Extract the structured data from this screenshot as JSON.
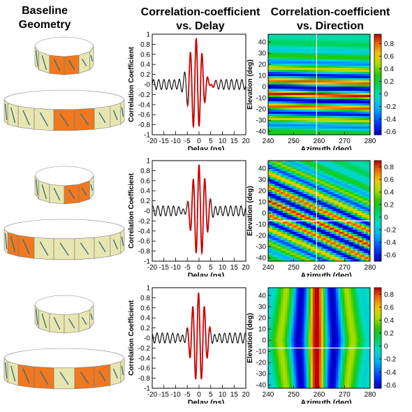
{
  "headers": {
    "baseline_line1": "Baseline",
    "baseline_line2": "Geometry",
    "delay_line1": "Correlation-coefficient",
    "delay_line2": "vs. Delay",
    "direction_line1": "Correlation-coefficient",
    "direction_line2": "vs. Direction"
  },
  "chart_data": [
    {
      "type": "line",
      "row": 1,
      "xlabel": "Delay (ns)",
      "ylabel": "Correlation Coefficient",
      "xlim": [
        -20,
        20
      ],
      "ylim": [
        -1,
        1
      ],
      "xticks": [
        "-20",
        "-15",
        "-10",
        "-5",
        "0",
        "5",
        "10",
        "15",
        "20"
      ],
      "yticks": [
        "-1",
        "-0.8",
        "-0.6",
        "-0.4",
        "-0.2",
        "-0",
        "0.2",
        "0.4",
        "0.6",
        "0.8",
        "1"
      ],
      "series": [
        {
          "color": "#000000",
          "peak_x": -1.2,
          "peak_y": 0.92,
          "min_y": -0.62,
          "period_ns": 2.5
        },
        {
          "color": "#cc0000",
          "fit_range": [
            -5,
            7
          ]
        }
      ]
    },
    {
      "type": "heatmap",
      "row": 1,
      "xlabel": "Azimuth (deg)",
      "ylabel": "Elevation (deg)",
      "xlim": [
        240,
        280
      ],
      "ylim": [
        -43,
        47
      ],
      "xticks": [
        "240",
        "250",
        "260",
        "270",
        "280"
      ],
      "yticks": [
        "-40",
        "-30",
        "-20",
        "-10",
        "0",
        "10",
        "20",
        "30",
        "40"
      ],
      "zlim": [
        -0.65,
        0.95
      ],
      "colorbar_ticks": [
        "-0.6",
        "-0.4",
        "-0.2",
        "0",
        "0.2",
        "0.4",
        "0.6",
        "0.8"
      ],
      "pattern": "horizontal fringes, peak band near elevation -7 deg",
      "crosshair": {
        "azimuth": 259
      }
    },
    {
      "type": "line",
      "row": 2,
      "xlabel": "Delay (ns)",
      "ylabel": "Correlation Coefficient",
      "xlim": [
        -20,
        20
      ],
      "ylim": [
        -1,
        1
      ],
      "xticks": [
        "-20",
        "-15",
        "-10",
        "-5",
        "0",
        "5",
        "10",
        "15",
        "20"
      ],
      "yticks": [
        "-1",
        "-0.8",
        "-0.6",
        "-0.4",
        "-0.2",
        "-0",
        "0.2",
        "0.4",
        "0.6",
        "0.8",
        "1"
      ],
      "series": [
        {
          "color": "#000000",
          "peak_x": 0,
          "peak_y": 0.92,
          "min_y": -0.75,
          "period_ns": 2.5
        },
        {
          "color": "#cc0000",
          "fit_range": [
            -5,
            5
          ]
        }
      ]
    },
    {
      "type": "heatmap",
      "row": 2,
      "xlabel": "Azimuth (deg)",
      "ylabel": "Elevation (deg)",
      "xlim": [
        240,
        280
      ],
      "ylim": [
        -43,
        47
      ],
      "xticks": [
        "240",
        "250",
        "260",
        "270",
        "280"
      ],
      "yticks": [
        "-40",
        "-30",
        "-20",
        "-10",
        "0",
        "10",
        "20",
        "30",
        "40"
      ],
      "zlim": [
        -0.7,
        0.9
      ],
      "colorbar_ticks": [
        "-0.6",
        "-0.4",
        "-0.2",
        "0",
        "0.2",
        "0.4",
        "0.6",
        "0.8"
      ],
      "pattern": "diagonal fringes descending with azimuth",
      "crosshair": {
        "azimuth": 259,
        "elevation": -7
      }
    },
    {
      "type": "line",
      "row": 3,
      "xlabel": "Delay (ns)",
      "ylabel": "Correlation Coefficient",
      "xlim": [
        -20,
        20
      ],
      "ylim": [
        -1,
        1
      ],
      "xticks": [
        "-20",
        "-15",
        "-10",
        "-5",
        "0",
        "5",
        "10",
        "15",
        "20"
      ],
      "yticks": [
        "-1",
        "-0.8",
        "-0.6",
        "-0.4",
        "-0.2",
        "-0",
        "0.2",
        "0.4",
        "0.6",
        "0.8",
        "1"
      ],
      "series": [
        {
          "color": "#000000",
          "peak_x": -0.2,
          "peak_y": 0.9,
          "min_y": -0.72,
          "period_ns": 2.5
        },
        {
          "color": "#cc0000",
          "fit_range": [
            -5,
            5
          ]
        }
      ]
    },
    {
      "type": "heatmap",
      "row": 3,
      "xlabel": "Azimuth (deg)",
      "ylabel": "Elevation (deg)",
      "xlim": [
        240,
        280
      ],
      "ylim": [
        -43,
        47
      ],
      "xticks": [
        "240",
        "250",
        "260",
        "270",
        "280"
      ],
      "yticks": [
        "-40",
        "-30",
        "-20",
        "-10",
        "0",
        "10",
        "20",
        "30",
        "40"
      ],
      "zlim": [
        -0.65,
        0.9
      ],
      "colorbar_ticks": [
        "-0.6",
        "-0.4",
        "-0.2",
        "0",
        "0.2",
        "0.4",
        "0.6",
        "0.8"
      ],
      "pattern": "vertical band, peak near azimuth 259 deg",
      "crosshair": {
        "elevation": -7
      }
    }
  ]
}
